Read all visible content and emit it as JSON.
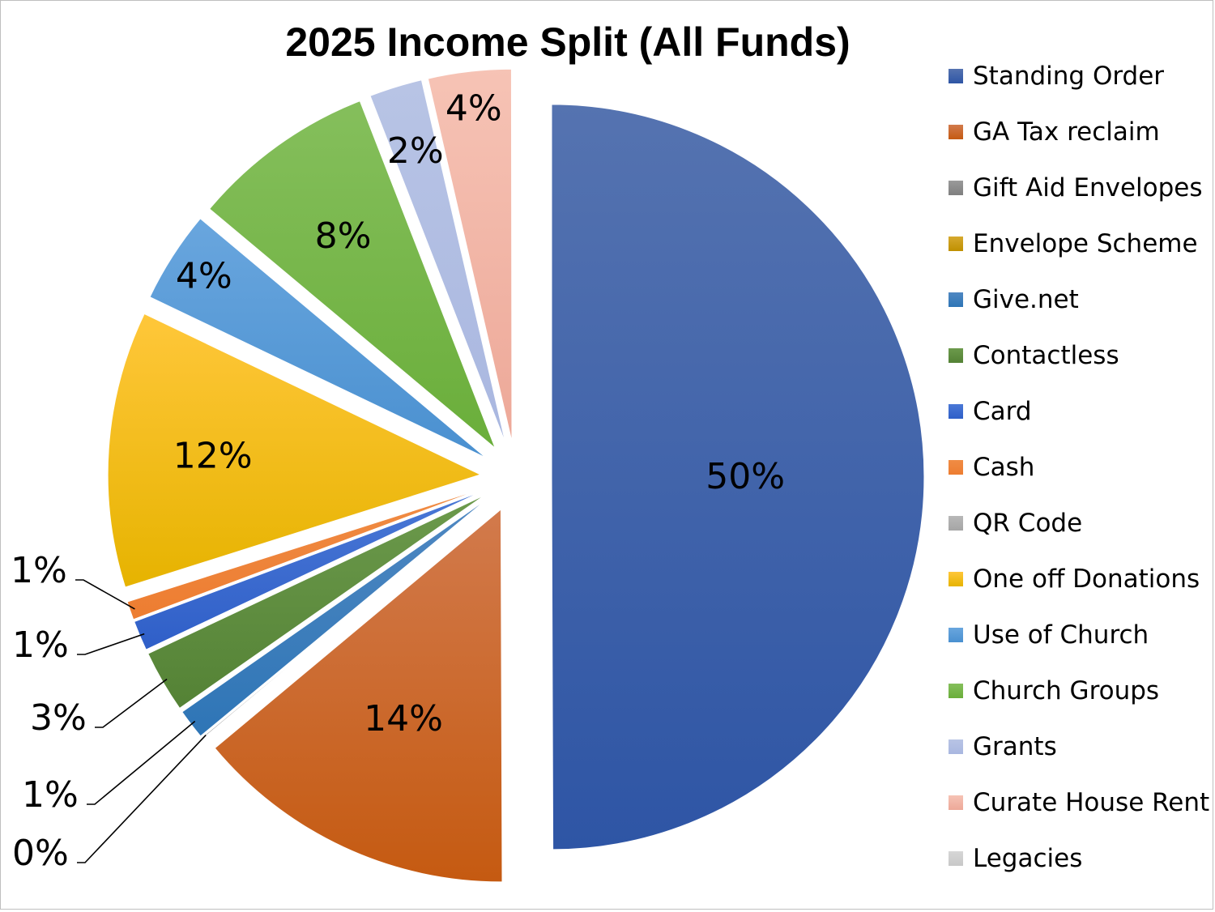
{
  "chart_data": {
    "type": "pie",
    "title": "2025 Income Split (All Funds)",
    "legend_position": "right",
    "slices": [
      {
        "name": "Standing Order",
        "value": 50,
        "label": "50%",
        "color": "#2E55A5",
        "color_light": "#5573B0"
      },
      {
        "name": "GA Tax reclaim",
        "value": 14,
        "label": "14%",
        "color": "#C55A11",
        "color_light": "#D27A4C"
      },
      {
        "name": "Gift Aid Envelopes",
        "value": 0.05,
        "label": "0%",
        "color": "#7F7F7F",
        "color_light": "#9A9A9A"
      },
      {
        "name": "Envelope Scheme",
        "value": 0.02,
        "label": "",
        "color": "#BF9000",
        "color_light": "#D6A92E"
      },
      {
        "name": "Give.net",
        "value": 1.3,
        "label": "1%",
        "color": "#2E75B6",
        "color_light": "#4F88C2"
      },
      {
        "name": "Contactless",
        "value": 2.7,
        "label": "3%",
        "color": "#548235",
        "color_light": "#6C9A4C"
      },
      {
        "name": "Card",
        "value": 1.3,
        "label": "1%",
        "color": "#2F5FC8",
        "color_light": "#4A78D6"
      },
      {
        "name": "Cash",
        "value": 0.8,
        "label": "1%",
        "color": "#ED7D31",
        "color_light": "#F08C45"
      },
      {
        "name": "QR Code",
        "value": 0.02,
        "label": "",
        "color": "#A5A5A5",
        "color_light": "#B8B8B8"
      },
      {
        "name": "One off Donations",
        "value": 12,
        "label": "12%",
        "color": "#E6B300",
        "color_light": "#FFC73A"
      },
      {
        "name": "Use of Church",
        "value": 4,
        "label": "4%",
        "color": "#4A90D0",
        "color_light": "#69A6DE"
      },
      {
        "name": "Church Groups",
        "value": 8,
        "label": "8%",
        "color": "#6AAE3A",
        "color_light": "#85BF5C"
      },
      {
        "name": "Grants",
        "value": 2.3,
        "label": "2%",
        "color": "#A9B7E0",
        "color_light": "#B8C4E5"
      },
      {
        "name": "Curate House Rent",
        "value": 3.6,
        "label": "4%",
        "color": "#EDA898",
        "color_light": "#F6C3B5"
      },
      {
        "name": "Legacies",
        "value": 0.02,
        "label": "",
        "color": "#C8C8C8",
        "color_light": "#D6D6D6"
      }
    ]
  }
}
